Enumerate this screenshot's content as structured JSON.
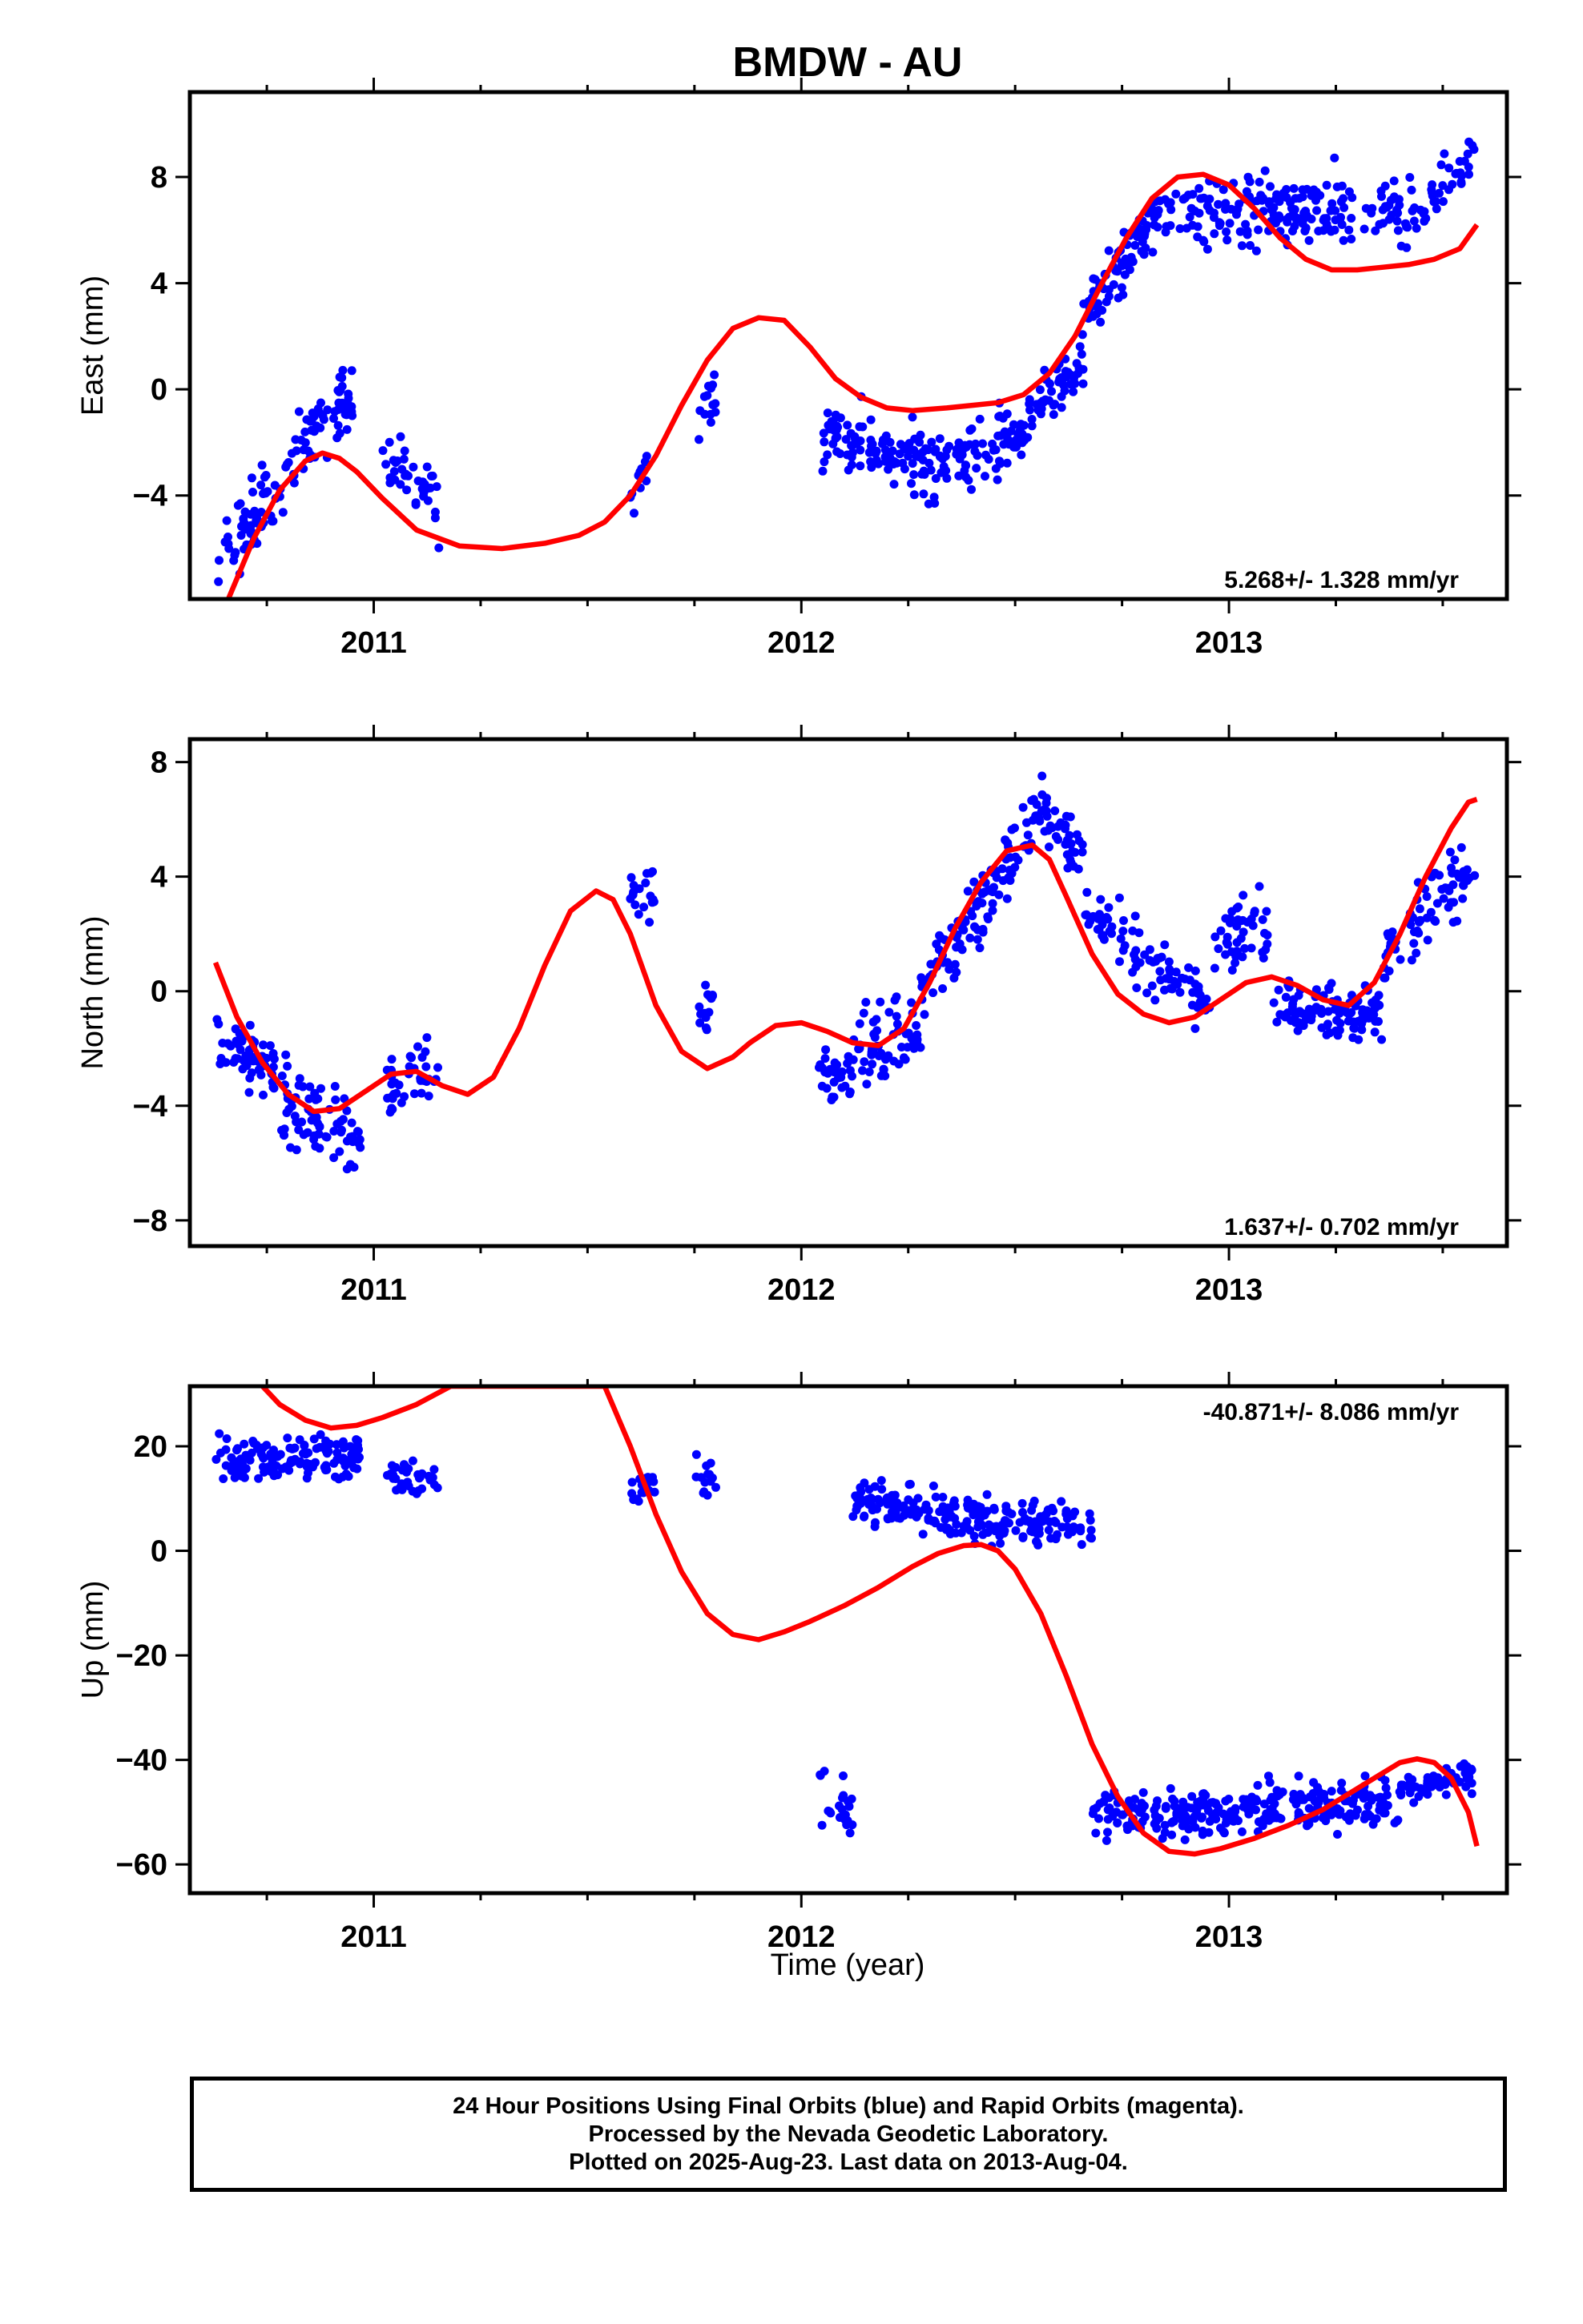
{
  "title": "BMDW - AU",
  "xlabel": "Time (year)",
  "x_tick_labels": [
    "2011",
    "2012",
    "2013"
  ],
  "footer": {
    "line1": "24 Hour Positions Using Final Orbits (blue) and Rapid Orbits (magenta).",
    "line2": "Processed by the Nevada Geodetic Laboratory.",
    "line3": "Plotted on 2025-Aug-23. Last data on 2013-Aug-04."
  },
  "colors": {
    "points": "#0000ff",
    "fit": "#ff0000",
    "frame": "#000000"
  },
  "chart_data": [
    {
      "type": "scatter",
      "ylabel": "East (mm)",
      "rate_label": "5.268+/- 1.328 mm/yr",
      "xlim": [
        2010.57,
        2013.65
      ],
      "ylim": [
        -7.9,
        11.2
      ],
      "yticks": [
        -4,
        0,
        4,
        8
      ],
      "yticklabels": [
        "−4",
        "0",
        "4",
        "8"
      ],
      "point_clusters": [
        {
          "x": [
            2010.63,
            2010.83
          ],
          "y": [
            -6.5,
            -2.6
          ],
          "spread": 1.2,
          "n": 70
        },
        {
          "x": [
            2010.83,
            2010.95
          ],
          "y": [
            -2.2,
            -0.2
          ],
          "spread": 1.3,
          "n": 55
        },
        {
          "x": [
            2011.02,
            2011.16
          ],
          "y": [
            -2.3,
            -4.5
          ],
          "spread": 1.1,
          "n": 40
        },
        {
          "x": [
            2011.6,
            2011.66
          ],
          "y": [
            -4.0,
            -2.2
          ],
          "spread": 0.8,
          "n": 12
        },
        {
          "x": [
            2011.76,
            2011.8
          ],
          "y": [
            -1.5,
            0.2
          ],
          "spread": 1.2,
          "n": 14
        },
        {
          "x": [
            2012.05,
            2012.33
          ],
          "y": [
            -1.5,
            -3.2
          ],
          "spread": 1.3,
          "n": 110
        },
        {
          "x": [
            2012.33,
            2012.53
          ],
          "y": [
            -2.6,
            -1.8
          ],
          "spread": 1.1,
          "n": 75
        },
        {
          "x": [
            2012.53,
            2012.66
          ],
          "y": [
            -1.0,
            1.0
          ],
          "spread": 1.1,
          "n": 50
        },
        {
          "x": [
            2012.66,
            2012.85
          ],
          "y": [
            2.5,
            7.2
          ],
          "spread": 1.2,
          "n": 80
        },
        {
          "x": [
            2012.85,
            2013.4
          ],
          "y": [
            6.8,
            6.6
          ],
          "spread": 1.3,
          "n": 190
        },
        {
          "x": [
            2013.4,
            2013.58
          ],
          "y": [
            6.0,
            8.9
          ],
          "spread": 1.0,
          "n": 45
        }
      ],
      "fit": {
        "x": [
          2010.66,
          2010.72,
          2010.78,
          2010.84,
          2010.88,
          2010.92,
          2010.96,
          2011.02,
          2011.1,
          2011.2,
          2011.3,
          2011.4,
          2011.48,
          2011.54,
          2011.6,
          2011.66,
          2011.72,
          2011.78,
          2011.84,
          2011.9,
          2011.96,
          2012.02,
          2012.08,
          2012.14,
          2012.2,
          2012.26,
          2012.34,
          2012.4,
          2012.46,
          2012.52,
          2012.58,
          2012.64,
          2012.7,
          2012.76,
          2012.82,
          2012.88,
          2012.94,
          2013.0,
          2013.06,
          2013.12,
          2013.18,
          2013.24,
          2013.3,
          2013.36,
          2013.42,
          2013.48,
          2013.54,
          2013.58
        ],
        "y": [
          -7.9,
          -5.6,
          -3.8,
          -2.7,
          -2.4,
          -2.6,
          -3.1,
          -4.1,
          -5.3,
          -5.9,
          -6.0,
          -5.8,
          -5.5,
          -5.0,
          -4.0,
          -2.5,
          -0.6,
          1.1,
          2.3,
          2.7,
          2.6,
          1.6,
          0.4,
          -0.3,
          -0.7,
          -0.8,
          -0.7,
          -0.6,
          -0.5,
          -0.2,
          0.6,
          2.0,
          3.9,
          5.7,
          7.2,
          8.0,
          8.1,
          7.7,
          6.8,
          5.7,
          4.9,
          4.5,
          4.5,
          4.6,
          4.7,
          4.9,
          5.3,
          6.2
        ]
      }
    },
    {
      "type": "scatter",
      "ylabel": "North (mm)",
      "rate_label": "1.637+/- 0.702 mm/yr",
      "xlim": [
        2010.57,
        2013.65
      ],
      "ylim": [
        -8.9,
        8.8
      ],
      "yticks": [
        -8,
        -4,
        0,
        4,
        8
      ],
      "yticklabels": [
        "−8",
        "−4",
        "0",
        "4",
        "8"
      ],
      "point_clusters": [
        {
          "x": [
            2010.63,
            2010.78
          ],
          "y": [
            -1.6,
            -3.0
          ],
          "spread": 1.1,
          "n": 55
        },
        {
          "x": [
            2010.78,
            2010.97
          ],
          "y": [
            -3.6,
            -4.9
          ],
          "spread": 1.5,
          "n": 75
        },
        {
          "x": [
            2011.03,
            2011.15
          ],
          "y": [
            -3.5,
            -2.5
          ],
          "spread": 1.2,
          "n": 40
        },
        {
          "x": [
            2011.6,
            2011.66
          ],
          "y": [
            3.4,
            3.4
          ],
          "spread": 1.0,
          "n": 18
        },
        {
          "x": [
            2011.76,
            2011.8
          ],
          "y": [
            -0.6,
            -0.4
          ],
          "spread": 0.9,
          "n": 14
        },
        {
          "x": [
            2012.04,
            2012.28
          ],
          "y": [
            -3.0,
            -1.4
          ],
          "spread": 1.3,
          "n": 90
        },
        {
          "x": [
            2012.28,
            2012.56
          ],
          "y": [
            0.0,
            6.4
          ],
          "spread": 1.2,
          "n": 110
        },
        {
          "x": [
            2012.56,
            2012.66
          ],
          "y": [
            6.4,
            4.5
          ],
          "spread": 1.0,
          "n": 40
        },
        {
          "x": [
            2012.66,
            2012.96
          ],
          "y": [
            3.0,
            -0.8
          ],
          "spread": 1.0,
          "n": 90
        },
        {
          "x": [
            2012.96,
            2013.1
          ],
          "y": [
            1.5,
            2.3
          ],
          "spread": 1.2,
          "n": 45
        },
        {
          "x": [
            2013.1,
            2013.36
          ],
          "y": [
            -0.5,
            -0.8
          ],
          "spread": 0.9,
          "n": 100
        },
        {
          "x": [
            2013.36,
            2013.58
          ],
          "y": [
            1.0,
            4.6
          ],
          "spread": 1.1,
          "n": 70
        }
      ],
      "fit": {
        "x": [
          2010.63,
          2010.68,
          2010.74,
          2010.8,
          2010.86,
          2010.92,
          2010.98,
          2011.04,
          2011.1,
          2011.16,
          2011.22,
          2011.28,
          2011.34,
          2011.4,
          2011.46,
          2011.52,
          2011.56,
          2011.6,
          2011.66,
          2011.72,
          2011.78,
          2011.84,
          2011.88,
          2011.94,
          2012.0,
          2012.06,
          2012.12,
          2012.18,
          2012.24,
          2012.3,
          2012.36,
          2012.42,
          2012.48,
          2012.54,
          2012.58,
          2012.62,
          2012.68,
          2012.74,
          2012.8,
          2012.86,
          2012.92,
          2012.98,
          2013.04,
          2013.1,
          2013.16,
          2013.22,
          2013.28,
          2013.34,
          2013.4,
          2013.46,
          2013.52,
          2013.56,
          2013.58
        ],
        "y": [
          1.0,
          -0.9,
          -2.5,
          -3.6,
          -4.2,
          -4.1,
          -3.5,
          -2.9,
          -2.8,
          -3.3,
          -3.6,
          -3.0,
          -1.3,
          0.9,
          2.8,
          3.5,
          3.2,
          2.0,
          -0.5,
          -2.1,
          -2.7,
          -2.3,
          -1.8,
          -1.2,
          -1.1,
          -1.4,
          -1.8,
          -1.9,
          -1.3,
          0.3,
          2.2,
          3.8,
          4.9,
          5.1,
          4.6,
          3.3,
          1.3,
          -0.1,
          -0.8,
          -1.1,
          -0.9,
          -0.3,
          0.3,
          0.5,
          0.2,
          -0.3,
          -0.5,
          0.3,
          2.0,
          4.0,
          5.7,
          6.6,
          6.7
        ]
      }
    },
    {
      "type": "scatter",
      "ylabel": "Up (mm)",
      "rate_label": "-40.871+/- 8.086 mm/yr",
      "xlim": [
        2010.57,
        2013.65
      ],
      "ylim": [
        -65.5,
        31.5
      ],
      "yticks": [
        -60,
        -40,
        -20,
        0,
        20
      ],
      "yticklabels": [
        "−60",
        "−40",
        "−20",
        "0",
        "20"
      ],
      "point_clusters": [
        {
          "x": [
            2010.63,
            2010.97
          ],
          "y": [
            17.0,
            18.0
          ],
          "spread": 4.0,
          "n": 130
        },
        {
          "x": [
            2011.03,
            2011.15
          ],
          "y": [
            15.0,
            13.0
          ],
          "spread": 3.5,
          "n": 35
        },
        {
          "x": [
            2011.6,
            2011.66
          ],
          "y": [
            11.0,
            12.0
          ],
          "spread": 3.0,
          "n": 16
        },
        {
          "x": [
            2011.75,
            2011.8
          ],
          "y": [
            15.0,
            13.0
          ],
          "spread": 4.0,
          "n": 14
        },
        {
          "x": [
            2012.04,
            2012.12
          ],
          "y": [
            -48.0,
            -50.0
          ],
          "spread": 5.0,
          "n": 22
        },
        {
          "x": [
            2012.12,
            2012.42
          ],
          "y": [
            10.0,
            6.0
          ],
          "spread": 4.0,
          "n": 120
        },
        {
          "x": [
            2012.42,
            2012.68
          ],
          "y": [
            5.0,
            5.0
          ],
          "spread": 4.0,
          "n": 95
        },
        {
          "x": [
            2012.68,
            2013.4
          ],
          "y": [
            -51.0,
            -48.0
          ],
          "spread": 4.2,
          "n": 280
        },
        {
          "x": [
            2013.4,
            2013.58
          ],
          "y": [
            -45.0,
            -43.0
          ],
          "spread": 3.0,
          "n": 60
        }
      ],
      "fit": {
        "x": [
          2010.74,
          2010.78,
          2010.84,
          2010.9,
          2010.96,
          2011.02,
          2011.1,
          2011.18,
          2011.54,
          2011.6,
          2011.66,
          2011.72,
          2011.78,
          2011.84,
          2011.9,
          2011.96,
          2012.02,
          2012.1,
          2012.18,
          2012.26,
          2012.32,
          2012.38,
          2012.42,
          2012.46,
          2012.5,
          2012.56,
          2012.62,
          2012.68,
          2012.74,
          2012.8,
          2012.86,
          2012.92,
          2012.98,
          2013.06,
          2013.14,
          2013.22,
          2013.28,
          2013.34,
          2013.4,
          2013.44,
          2013.48,
          2013.52,
          2013.56,
          2013.58
        ],
        "y": [
          31.5,
          28.0,
          25.0,
          23.5,
          24.0,
          25.5,
          28.0,
          31.5,
          31.5,
          20.0,
          7.0,
          -4.0,
          -12.0,
          -16.0,
          -17.0,
          -15.5,
          -13.5,
          -10.5,
          -7.0,
          -3.0,
          -0.5,
          1.0,
          1.2,
          0.0,
          -3.5,
          -12.0,
          -24.0,
          -37.0,
          -47.0,
          -54.0,
          -57.5,
          -58.0,
          -57.0,
          -55.0,
          -52.5,
          -49.5,
          -46.5,
          -43.5,
          -40.5,
          -39.8,
          -40.5,
          -43.5,
          -50.0,
          -56.5
        ]
      }
    }
  ]
}
